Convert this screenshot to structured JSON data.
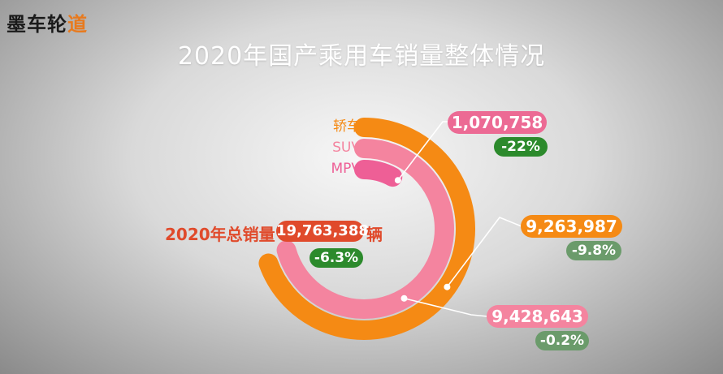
{
  "logo": {
    "text_main": "墨车轮",
    "text_accent": "道"
  },
  "title": "2020年国产乘用车销量整体情况",
  "colors": {
    "sedan": "#f58a14",
    "suv": "#f4849f",
    "mpv": "#ee5f96",
    "value_pill": "#ec6a94",
    "pct_dark": "#2c8a2c",
    "pct_light": "#6b9b6b",
    "total": "#e04a2b"
  },
  "chart_data": {
    "type": "radial_bar",
    "title": "2020年国产乘用车销量整体情况",
    "categories": [
      "轿车",
      "SUV",
      "MPV"
    ],
    "values": [
      9263987,
      9428643,
      1070758
    ],
    "value_labels": [
      "9,263,987",
      "9,428,643",
      "1,070,758"
    ],
    "yoy_change_percent": [
      -9.8,
      -0.2,
      -22
    ],
    "yoy_labels": [
      "-9.8%",
      "-0.2%",
      "-22%"
    ],
    "total": {
      "label": "2020年总销量",
      "value": 19763388,
      "value_label": "19,763,388",
      "unit": "辆",
      "yoy_change_percent": -6.3,
      "yoy_label": "-6.3%"
    },
    "legend_position": "left-of-arcs"
  }
}
